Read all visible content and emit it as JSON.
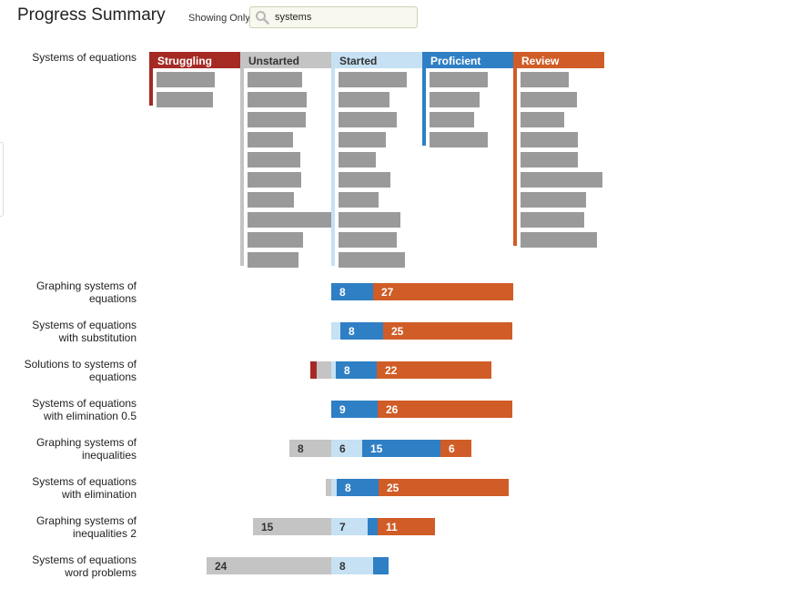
{
  "header": {
    "title": "Progress Summary",
    "filter_label": "Showing Only",
    "search_value": "systems"
  },
  "colors": {
    "struggling": "#a52a24",
    "unstarted": "#c4c4c4",
    "started": "#c6e1f3",
    "proficient": "#2f7fc4",
    "review": "#d05d27",
    "item": "#9a9a9a"
  },
  "chart_data": {
    "type": "bar",
    "top_group": {
      "label": "Systems of equations",
      "columns": [
        {
          "name": "Struggling",
          "items": 2
        },
        {
          "name": "Unstarted",
          "items": 10
        },
        {
          "name": "Started",
          "items": 10
        },
        {
          "name": "Proficient",
          "items": 4
        },
        {
          "name": "Review",
          "items": 9
        }
      ]
    },
    "series_order": [
      "Struggling",
      "Unstarted",
      "Started",
      "Proficient",
      "Review"
    ],
    "rows": [
      {
        "label": "Graphing systems of equations",
        "label_lines": [
          "Graphing systems of",
          "equations"
        ],
        "values": {
          "Struggling": 0,
          "Unstarted": 0,
          "Started": 0,
          "Proficient": 8,
          "Review": 27
        },
        "shown": {
          "Proficient": "8",
          "Review": "27"
        }
      },
      {
        "label": "Systems of equations with substitution",
        "label_lines": [
          "Systems of equations",
          "with substitution"
        ],
        "values": {
          "Struggling": 0,
          "Unstarted": 0,
          "Started": 2,
          "Proficient": 8,
          "Review": 25
        },
        "shown": {
          "Proficient": "8",
          "Review": "25"
        }
      },
      {
        "label": "Solutions to systems of equations",
        "label_lines": [
          "Solutions to systems of",
          "equations"
        ],
        "values": {
          "Struggling": 1,
          "Unstarted": 3,
          "Started": 1,
          "Proficient": 8,
          "Review": 22
        },
        "shown": {
          "Proficient": "8",
          "Review": "22"
        }
      },
      {
        "label": "Systems of equations with elimination 0.5",
        "label_lines": [
          "Systems of equations",
          "with elimination 0.5"
        ],
        "values": {
          "Struggling": 0,
          "Unstarted": 0,
          "Started": 0,
          "Proficient": 9,
          "Review": 26
        },
        "shown": {
          "Proficient": "9",
          "Review": "26"
        }
      },
      {
        "label": "Graphing systems of inequalities",
        "label_lines": [
          "Graphing systems of",
          "inequalities"
        ],
        "values": {
          "Struggling": 0,
          "Unstarted": 8,
          "Started": 6,
          "Proficient": 15,
          "Review": 6
        },
        "shown": {
          "Unstarted": "8",
          "Started": "6",
          "Proficient": "15",
          "Review": "6"
        }
      },
      {
        "label": "Systems of equations with elimination",
        "label_lines": [
          "Systems of equations",
          "with elimination"
        ],
        "values": {
          "Struggling": 0,
          "Unstarted": 1,
          "Started": 1,
          "Proficient": 8,
          "Review": 25
        },
        "shown": {
          "Proficient": "8",
          "Review": "25"
        }
      },
      {
        "label": "Graphing systems of inequalities 2",
        "label_lines": [
          "Graphing systems of",
          "inequalities 2"
        ],
        "values": {
          "Struggling": 0,
          "Unstarted": 15,
          "Started": 7,
          "Proficient": 2,
          "Review": 11
        },
        "shown": {
          "Unstarted": "15",
          "Started": "7",
          "Review": "11"
        }
      },
      {
        "label": "Systems of equations word problems",
        "label_lines": [
          "Systems of equations",
          "word problems"
        ],
        "values": {
          "Struggling": 0,
          "Unstarted": 24,
          "Started": 8,
          "Proficient": 3,
          "Review": 0
        },
        "shown": {
          "Unstarted": "24",
          "Started": "8"
        }
      }
    ]
  }
}
